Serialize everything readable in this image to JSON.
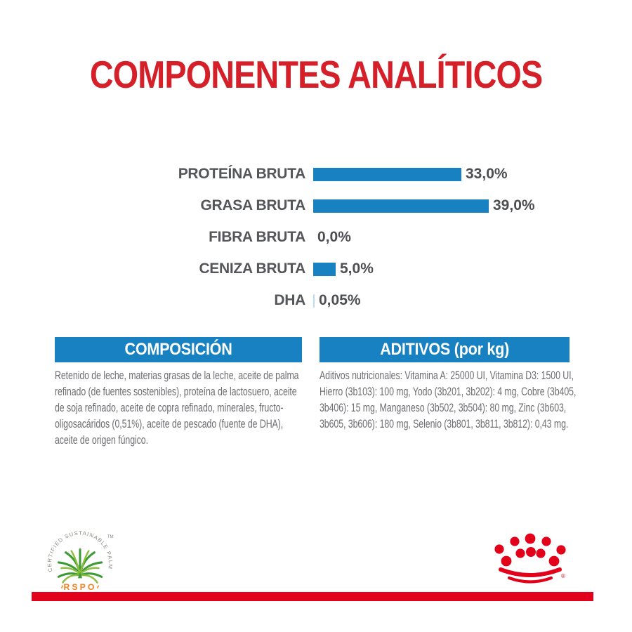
{
  "title": {
    "text": "COMPONENTES ANALÍTICOS",
    "color": "#D5202A"
  },
  "chart_data": {
    "type": "bar",
    "orientation": "horizontal",
    "title": "COMPONENTES ANALÍTICOS",
    "categories": [
      "PROTEÍNA BRUTA",
      "GRASA BRUTA",
      "FIBRA BRUTA",
      "CENIZA BRUTA",
      "DHA"
    ],
    "values": [
      33.0,
      39.0,
      0.0,
      5.0,
      0.05
    ],
    "value_labels": [
      "33,0%",
      "39,0%",
      "0,0%",
      "5,0%",
      "0,05%"
    ],
    "unit": "%",
    "xlim": [
      0,
      40
    ],
    "grid": false,
    "legend": false,
    "bar_color": "#1781C2",
    "trace_bar_color": "#BFDCEF",
    "category_label_color": "#55565A",
    "value_label_color": "#4D4E52"
  },
  "sections": {
    "header_bg": "#1781C2",
    "header_text_color": "#FFFFFF",
    "composicion": {
      "header": "COMPOSICIÓN",
      "body": "Retenido de leche, materias grasas de la leche, aceite de palma refinado (de fuentes sostenibles), proteína de lactosuero, aceite de soja refinado, aceite de copra refinado, minerales, fructo-oligosacáridos (0,51%), aceite de pescado (fuente de DHA), aceite de origen fúngico."
    },
    "aditivos": {
      "header": "ADITIVOS (por kg)",
      "body": "Aditivos nutricionales: Vitamina A: 25000 UI, Vitamina D3: 1500 UI, Hierro (3b103): 100 mg, Yodo (3b201, 3b202): 4 mg, Cobre (3b405, 3b406): 15 mg, Manganeso (3b502, 3b504): 80 mg, Zinc (3b603, 3b605, 3b606): 180 mg, Selenio (3b801, 3b811, 3b812): 0,43 mg."
    }
  },
  "footer": {
    "red_bar_color": "#E2001A",
    "brand_crown_color": "#E2001A",
    "registered_mark": "®",
    "rspo": {
      "arc_text": "CERTIFIED SUSTAINABLE   PALM OIL",
      "trademark": "TM",
      "label": "RSPO",
      "label_color": "#F58220",
      "arc_text_color": "#8B8D84",
      "palm_dark_green": "#3D9B35",
      "palm_light_green": "#8CBF3F"
    }
  }
}
